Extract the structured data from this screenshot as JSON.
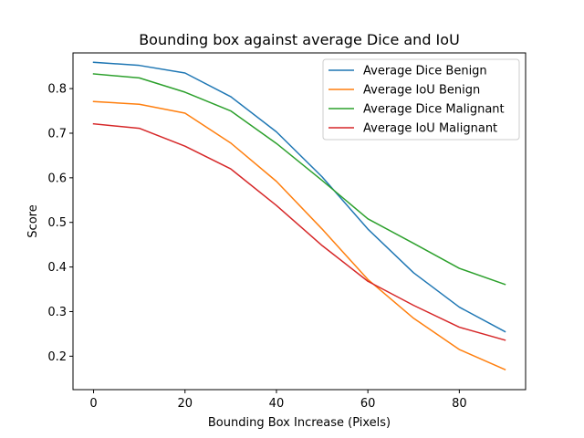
{
  "chart_data": {
    "type": "line",
    "title": "Bounding box against average Dice and IoU",
    "xlabel": "Bounding Box Increase (Pixels)",
    "ylabel": "Score",
    "x": [
      0,
      10,
      20,
      30,
      40,
      50,
      60,
      70,
      80,
      90
    ],
    "xlim": [
      -4.5,
      94.5
    ],
    "ylim": [
      0.125,
      0.88
    ],
    "xticks": [
      0,
      20,
      40,
      60,
      80
    ],
    "yticks": [
      0.2,
      0.3,
      0.4,
      0.5,
      0.6,
      0.7,
      0.8
    ],
    "grid": false,
    "legend_position": "top-right",
    "series": [
      {
        "name": "Average Dice Benign",
        "color": "#1f77b4",
        "values": [
          0.859,
          0.852,
          0.835,
          0.782,
          0.703,
          0.602,
          0.485,
          0.387,
          0.31,
          0.255
        ]
      },
      {
        "name": "Average IoU Benign",
        "color": "#ff7f0e",
        "values": [
          0.771,
          0.765,
          0.745,
          0.678,
          0.592,
          0.485,
          0.372,
          0.285,
          0.215,
          0.17
        ]
      },
      {
        "name": "Average Dice Malignant",
        "color": "#2ca02c",
        "values": [
          0.833,
          0.824,
          0.792,
          0.75,
          0.677,
          0.594,
          0.508,
          0.453,
          0.397,
          0.361
        ]
      },
      {
        "name": "Average IoU Malignant",
        "color": "#d62728",
        "values": [
          0.721,
          0.711,
          0.671,
          0.62,
          0.538,
          0.448,
          0.368,
          0.314,
          0.265,
          0.236
        ]
      }
    ]
  }
}
